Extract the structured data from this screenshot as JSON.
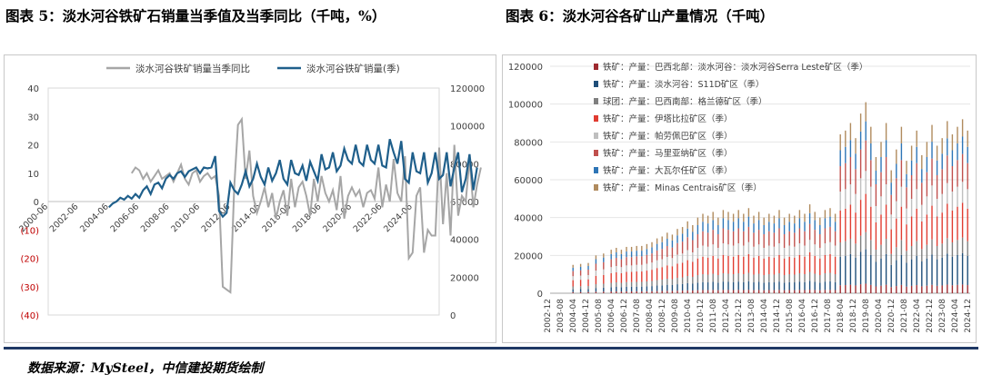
{
  "titles": {
    "left": "图表 5：淡水河谷铁矿石销量当季值及当季同比（千吨，%）",
    "right": "图表 6：淡水河谷各矿山产量情况（千吨）"
  },
  "source": "数据来源：MySteel，中信建投期货绘制",
  "colors": {
    "accent": "#1f3864",
    "sales": "#1f5f8b",
    "yoy": "#a6a6a6",
    "negative_tick": "#c00000"
  },
  "chart_data": [
    {
      "type": "line",
      "title": "",
      "ylim": [
        -40,
        40
      ],
      "y2lim": [
        0,
        120000
      ],
      "yticks": [
        "40",
        "30",
        "20",
        "10",
        "0",
        "(10)",
        "(20)",
        "(30)",
        "(40)"
      ],
      "y2ticks": [
        "120000",
        "100000",
        "80000",
        "60000",
        "40000",
        "20000",
        "0"
      ],
      "xticks": [
        "2000-06",
        "2002-06",
        "2004-06",
        "2006-06",
        "2008-06",
        "2010-06",
        "2012-06",
        "2014-06",
        "2016-06",
        "2018-06",
        "2020-06",
        "2022-06",
        "2024-06"
      ],
      "x_start": 2000.375,
      "x_step": 0.25,
      "legend": "top",
      "series": [
        {
          "name": "淡水河谷铁矿销量当季同比",
          "axis": "left",
          "start_index": 22,
          "values": [
            10,
            12,
            11,
            8,
            10,
            7,
            9,
            11,
            8,
            9,
            10,
            7,
            10,
            13,
            8,
            6,
            10,
            11,
            7,
            9,
            10,
            8,
            9,
            2,
            -30,
            -31,
            -32,
            5,
            27,
            29,
            8,
            18,
            2,
            -4,
            0,
            5,
            -2,
            3,
            -6,
            0,
            4,
            -5,
            8,
            -2,
            5,
            7,
            2,
            -5,
            8,
            0,
            9,
            3,
            0,
            4,
            -3,
            9,
            -6,
            2,
            5,
            2,
            4,
            -2,
            3,
            4,
            1,
            12,
            -2,
            6,
            0,
            15,
            3,
            0,
            16,
            -20,
            -18,
            2,
            5,
            -18,
            -10,
            -12,
            -12,
            19,
            -8,
            10,
            -12,
            20,
            -5,
            2,
            0,
            15,
            -2,
            6,
            12
          ]
        },
        {
          "name": "淡水河谷铁矿销量(季)",
          "axis": "right",
          "start_index": 16,
          "values": [
            57000,
            59000,
            60000,
            62000,
            61000,
            63000,
            61500,
            64000,
            62000,
            66000,
            68000,
            64000,
            69000,
            70000,
            67000,
            72000,
            74000,
            72000,
            75000,
            76000,
            73000,
            76000,
            77000,
            78000,
            75000,
            78000,
            77500,
            78000,
            84000,
            55000,
            52000,
            54000,
            70000,
            66000,
            64000,
            69000,
            76000,
            68000,
            72000,
            80000,
            73000,
            69000,
            78000,
            71000,
            75000,
            82000,
            72000,
            69000,
            82000,
            75000,
            74000,
            79000,
            71000,
            81000,
            76000,
            71000,
            85000,
            77000,
            78000,
            86000,
            76000,
            79000,
            88000,
            82000,
            80000,
            90000,
            81000,
            79000,
            90000,
            82000,
            80000,
            90000,
            79000,
            78000,
            93000,
            86000,
            80000,
            92000,
            72000,
            70000,
            86000,
            76000,
            75000,
            86000,
            70000,
            75000,
            86000,
            72000,
            74000,
            86000,
            68000,
            78000,
            86000,
            65000,
            72000,
            85000,
            66000,
            78000
          ]
        }
      ]
    },
    {
      "type": "bar",
      "title": "",
      "stacked": true,
      "ylim": [
        0,
        120000
      ],
      "yticks": [
        "120000",
        "100000",
        "80000",
        "60000",
        "40000",
        "20000",
        "0"
      ],
      "xticks": [
        "2002-12",
        "2003-08",
        "2004-04",
        "2004-12",
        "2005-08",
        "2006-04",
        "2006-12",
        "2007-08",
        "2008-04",
        "2008-12",
        "2009-08",
        "2010-04",
        "2010-12",
        "2011-08",
        "2012-04",
        "2012-12",
        "2013-08",
        "2014-04",
        "2014-12",
        "2015-08",
        "2016-04",
        "2016-12",
        "2017-08",
        "2018-04",
        "2018-12",
        "2019-08",
        "2020-04",
        "2020-12",
        "2021-08",
        "2022-04",
        "2022-12",
        "2023-08",
        "2024-04",
        "2024-12"
      ],
      "legend": "top-left",
      "series": [
        {
          "name": "铁矿：产量：巴西北部：淡水河谷：淡水河谷Serra Leste矿区（季）",
          "color": "#9e2a2f"
        },
        {
          "name": "铁矿：产量：淡水河谷：S11D矿区（季）",
          "color": "#1f4e79"
        },
        {
          "name": "球团：产量：巴西南部：格兰德矿区（季）",
          "color": "#7f7f7f"
        },
        {
          "name": "铁矿：产量：伊塔比拉矿区（季）",
          "color": "#e03c31"
        },
        {
          "name": "铁矿：产量：帕劳佩巴矿区（季）",
          "color": "#bfbfbf"
        },
        {
          "name": "铁矿：产量：马里亚纳矿区（季）",
          "color": "#c0504d"
        },
        {
          "name": "铁矿：产量：大瓦尔任矿区（季）",
          "color": "#2e75b6"
        },
        {
          "name": "铁矿：产量：Minas Centrais矿区（季）",
          "color": "#b08b5e"
        }
      ],
      "bars": [
        {
          "i": 9,
          "t": 15000
        },
        {
          "i": 12,
          "t": 15500
        },
        {
          "i": 15,
          "t": 16000
        },
        {
          "i": 18,
          "t": 20000
        },
        {
          "i": 21,
          "t": 21000
        },
        {
          "i": 24,
          "t": 23000
        },
        {
          "i": 26,
          "t": 24000
        },
        {
          "i": 28,
          "t": 23000
        },
        {
          "i": 30,
          "t": 24500
        },
        {
          "i": 32,
          "t": 24500
        },
        {
          "i": 34,
          "t": 25000
        },
        {
          "i": 36,
          "t": 25000
        },
        {
          "i": 38,
          "t": 26000
        },
        {
          "i": 40,
          "t": 27000
        },
        {
          "i": 42,
          "t": 29000
        },
        {
          "i": 44,
          "t": 30000
        },
        {
          "i": 46,
          "t": 32000
        },
        {
          "i": 48,
          "t": 31000
        },
        {
          "i": 50,
          "t": 34000
        },
        {
          "i": 52,
          "t": 35000
        },
        {
          "i": 54,
          "t": 38000
        },
        {
          "i": 56,
          "t": 36000
        },
        {
          "i": 58,
          "t": 40000
        },
        {
          "i": 60,
          "t": 42000
        },
        {
          "i": 62,
          "t": 41000
        },
        {
          "i": 64,
          "t": 43000
        },
        {
          "i": 66,
          "t": 40000
        },
        {
          "i": 68,
          "t": 44000
        },
        {
          "i": 70,
          "t": 43000
        },
        {
          "i": 72,
          "t": 42000
        },
        {
          "i": 74,
          "t": 44000
        },
        {
          "i": 76,
          "t": 42000
        },
        {
          "i": 78,
          "t": 45000
        },
        {
          "i": 80,
          "t": 41000
        },
        {
          "i": 82,
          "t": 43000
        },
        {
          "i": 84,
          "t": 40000
        },
        {
          "i": 86,
          "t": 42000
        },
        {
          "i": 88,
          "t": 41000
        },
        {
          "i": 90,
          "t": 44000
        },
        {
          "i": 92,
          "t": 40000
        },
        {
          "i": 94,
          "t": 42000
        },
        {
          "i": 96,
          "t": 41000
        },
        {
          "i": 98,
          "t": 44000
        },
        {
          "i": 100,
          "t": 42000
        },
        {
          "i": 102,
          "t": 47000
        },
        {
          "i": 104,
          "t": 43000
        },
        {
          "i": 106,
          "t": 40000
        },
        {
          "i": 108,
          "t": 44000
        },
        {
          "i": 110,
          "t": 45000
        },
        {
          "i": 112,
          "t": 42000
        },
        {
          "i": 114,
          "t": 84000
        },
        {
          "i": 116,
          "t": 86000
        },
        {
          "i": 118,
          "t": 90000
        },
        {
          "i": 120,
          "t": 82000
        },
        {
          "i": 122,
          "t": 95000
        },
        {
          "i": 124,
          "t": 101000
        },
        {
          "i": 126,
          "t": 88000
        },
        {
          "i": 128,
          "t": 72000
        },
        {
          "i": 130,
          "t": 80000
        },
        {
          "i": 132,
          "t": 90000
        },
        {
          "i": 134,
          "t": 65000
        },
        {
          "i": 136,
          "t": 76000
        },
        {
          "i": 138,
          "t": 88000
        },
        {
          "i": 140,
          "t": 70000
        },
        {
          "i": 142,
          "t": 78000
        },
        {
          "i": 144,
          "t": 86000
        },
        {
          "i": 146,
          "t": 73000
        },
        {
          "i": 148,
          "t": 80000
        },
        {
          "i": 150,
          "t": 89000
        },
        {
          "i": 152,
          "t": 78000
        },
        {
          "i": 154,
          "t": 82000
        },
        {
          "i": 156,
          "t": 91000
        },
        {
          "i": 158,
          "t": 84000
        },
        {
          "i": 160,
          "t": 88000
        },
        {
          "i": 162,
          "t": 92000
        },
        {
          "i": 164,
          "t": 86000
        }
      ],
      "x_count": 166
    }
  ]
}
